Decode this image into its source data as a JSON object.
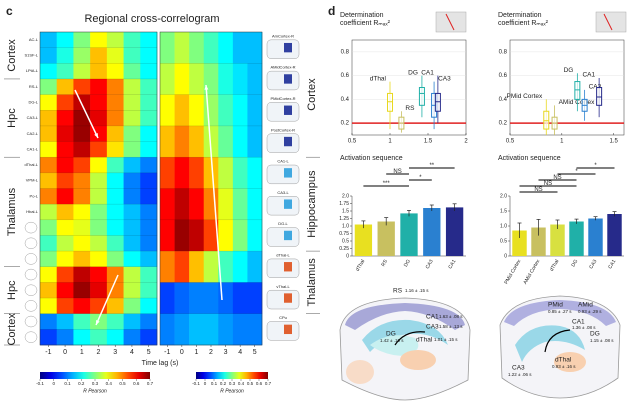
{
  "panel_labels": [
    "c",
    "d"
  ],
  "chart_data": [
    {
      "type": "heatmap",
      "title": "Regional cross-correlogram",
      "xlabel": "Time lag (s)",
      "x": [
        -1,
        0,
        1,
        2,
        3,
        4,
        5
      ],
      "xlim": [
        -1.5,
        5.5
      ],
      "xticks": [
        -1,
        0,
        1,
        2,
        3,
        4,
        5
      ],
      "rows": [
        "AC-L",
        "S1SF-L",
        "LPtA-L",
        "RS-L",
        "DG-L",
        "CA3-L",
        "CA2-L",
        "CA1-L",
        "dThal-L",
        "VPM-L",
        "Po-L",
        "Hbal-L",
        null,
        null,
        null,
        null,
        null,
        null,
        null,
        null
      ],
      "row_label_side": "left",
      "groups": [
        {
          "label": "Cortex",
          "from": 0,
          "to": 2
        },
        {
          "label": "Hpc",
          "from": 3,
          "to": 7
        },
        {
          "label": "Thalamus",
          "from": 8,
          "to": 14
        },
        {
          "label": "Hpc",
          "from": 15,
          "to": 17
        },
        {
          "label": "Cortex",
          "from": 18,
          "to": 19
        }
      ],
      "z": [
        [
          0.15,
          0.2,
          0.3,
          0.4,
          0.35,
          0.25,
          0.2
        ],
        [
          0.15,
          0.22,
          0.32,
          0.45,
          0.38,
          0.25,
          0.2
        ],
        [
          0.2,
          0.25,
          0.35,
          0.45,
          0.4,
          0.28,
          0.2
        ],
        [
          0.3,
          0.45,
          0.55,
          0.6,
          0.5,
          0.35,
          0.25
        ],
        [
          0.4,
          0.55,
          0.65,
          0.6,
          0.5,
          0.35,
          0.25
        ],
        [
          0.45,
          0.6,
          0.68,
          0.62,
          0.5,
          0.35,
          0.25
        ],
        [
          0.45,
          0.62,
          0.68,
          0.6,
          0.45,
          0.3,
          0.2
        ],
        [
          0.4,
          0.6,
          0.65,
          0.55,
          0.42,
          0.3,
          0.2
        ],
        [
          0.5,
          0.6,
          0.55,
          0.4,
          0.25,
          0.15,
          0.1
        ],
        [
          0.45,
          0.55,
          0.5,
          0.35,
          0.2,
          0.1,
          0.05
        ],
        [
          0.5,
          0.6,
          0.5,
          0.35,
          0.2,
          0.1,
          0.05
        ],
        [
          0.35,
          0.45,
          0.4,
          0.3,
          0.2,
          0.15,
          0.1
        ],
        [
          0.3,
          0.4,
          0.38,
          0.3,
          0.2,
          0.15,
          0.1
        ],
        [
          0.25,
          0.35,
          0.4,
          0.35,
          0.25,
          0.15,
          0.1
        ],
        [
          0.3,
          0.4,
          0.45,
          0.4,
          0.3,
          0.2,
          0.15
        ],
        [
          0.4,
          0.55,
          0.65,
          0.6,
          0.5,
          0.35,
          0.25
        ],
        [
          0.45,
          0.6,
          0.68,
          0.62,
          0.5,
          0.35,
          0.25
        ],
        [
          0.4,
          0.55,
          0.6,
          0.55,
          0.45,
          0.3,
          0.2
        ],
        [
          0.1,
          0.15,
          0.25,
          0.3,
          0.25,
          0.15,
          0.1
        ],
        [
          0.05,
          0.1,
          0.2,
          0.25,
          0.2,
          0.1,
          0.05
        ]
      ],
      "zlim": [
        -0.1,
        0.7
      ],
      "zticks": [
        -0.1,
        0,
        0.1,
        0.2,
        0.3,
        0.4,
        0.5,
        0.6,
        0.7
      ],
      "colorbar_label": "R Pearson"
    },
    {
      "type": "heatmap",
      "x": [
        -1,
        0,
        1,
        2,
        3,
        4,
        5
      ],
      "xlim": [
        -1.5,
        5.5
      ],
      "xticks": [
        -1,
        0,
        1,
        2,
        3,
        4,
        5
      ],
      "rows": [
        "AmCortex-R",
        "AMidCortex-R",
        "PMidCortex-R",
        "PostCortex-R",
        "CA1-L",
        "CA3-L",
        "DG-L",
        "dThal-L",
        "vThal-L",
        "CPu"
      ],
      "row_label_side": "right",
      "groups": [
        {
          "label": "Cortex",
          "from": 0,
          "to": 3
        },
        {
          "label": "Hippocampus",
          "from": 4,
          "to": 6
        },
        {
          "label": "Thalamus",
          "from": 7,
          "to": 8
        }
      ],
      "z": [
        [
          0.3,
          0.35,
          0.3,
          0.25,
          0.2,
          0.15,
          0.15
        ],
        [
          0.35,
          0.4,
          0.35,
          0.3,
          0.22,
          0.18,
          0.15
        ],
        [
          0.4,
          0.45,
          0.4,
          0.32,
          0.25,
          0.2,
          0.15
        ],
        [
          0.45,
          0.5,
          0.45,
          0.35,
          0.28,
          0.2,
          0.15
        ],
        [
          0.55,
          0.6,
          0.55,
          0.45,
          0.35,
          0.25,
          0.2
        ],
        [
          0.6,
          0.65,
          0.6,
          0.5,
          0.38,
          0.28,
          0.2
        ],
        [
          0.6,
          0.68,
          0.65,
          0.55,
          0.4,
          0.3,
          0.2
        ],
        [
          0.5,
          0.55,
          0.45,
          0.35,
          0.25,
          0.2,
          0.15
        ],
        [
          0.05,
          0.08,
          0.1,
          0.1,
          0.08,
          0.05,
          0.05
        ],
        [
          0.1,
          0.12,
          0.15,
          0.15,
          0.12,
          0.1,
          0.1
        ]
      ],
      "zlim": [
        -0.1,
        0.7
      ],
      "zticks": [
        -0.1,
        0,
        0.1,
        0.2,
        0.3,
        0.4,
        0.5,
        0.6,
        0.7
      ],
      "colorbar_label": "R Pearson"
    },
    {
      "type": "box",
      "title_lines": [
        "Determination",
        "coefficient Rₘₐₓ²"
      ],
      "xlim": [
        0.5,
        2
      ],
      "xticks": [
        0.5,
        1,
        1.5,
        2
      ],
      "ylim": [
        0.1,
        0.9
      ],
      "yticks": [
        0.2,
        0.4,
        0.6,
        0.8
      ],
      "threshold": 0.2,
      "threshold_color": "#e02020",
      "series": [
        {
          "name": "dThal",
          "color": "#e8d820",
          "x": 1.0,
          "q1": 0.3,
          "median": 0.38,
          "q3": 0.45,
          "whisker_low": 0.15,
          "whisker_high": 0.55
        },
        {
          "name": "RS",
          "color": "#c8c060",
          "x": 1.15,
          "q1": 0.15,
          "median": 0.2,
          "q3": 0.25,
          "whisker_low": 0.12,
          "whisker_high": 0.3
        },
        {
          "name": "DG",
          "color": "#20b0a8",
          "x": 1.42,
          "q1": 0.35,
          "median": 0.45,
          "q3": 0.5,
          "whisker_low": 0.25,
          "whisker_high": 0.6
        },
        {
          "name": "CA3",
          "color": "#2a80d0",
          "x": 1.58,
          "q1": 0.25,
          "median": 0.35,
          "q3": 0.45,
          "whisker_low": 0.15,
          "whisker_high": 0.55
        },
        {
          "name": "CA1",
          "color": "#262a8a",
          "x": 1.63,
          "q1": 0.3,
          "median": 0.38,
          "q3": 0.45,
          "whisker_low": 0.2,
          "whisker_high": 0.6
        }
      ]
    },
    {
      "type": "box",
      "title_lines": [
        "Determination",
        "coefficient Rₘₐₓ²"
      ],
      "xlim": [
        0.5,
        1.6
      ],
      "xticks": [
        0.5,
        1,
        1.5
      ],
      "ylim": [
        0.1,
        0.9
      ],
      "yticks": [
        0.2,
        0.4,
        0.6,
        0.8
      ],
      "threshold": 0.2,
      "threshold_color": "#e02020",
      "series": [
        {
          "name": "PMid Cortex",
          "color": "#e8d820",
          "x": 0.85,
          "q1": 0.15,
          "median": 0.22,
          "q3": 0.3,
          "whisker_low": 0.1,
          "whisker_high": 0.4
        },
        {
          "name": "AMid Cortex",
          "color": "#c8c060",
          "x": 0.93,
          "q1": 0.15,
          "median": 0.2,
          "q3": 0.25,
          "whisker_low": 0.1,
          "whisker_high": 0.35
        },
        {
          "name": "DG",
          "color": "#20b0a8",
          "x": 1.15,
          "q1": 0.4,
          "median": 0.48,
          "q3": 0.55,
          "whisker_low": 0.3,
          "whisker_high": 0.62
        },
        {
          "name": "CA3",
          "color": "#2a80d0",
          "x": 1.22,
          "q1": 0.3,
          "median": 0.35,
          "q3": 0.4,
          "whisker_low": 0.22,
          "whisker_high": 0.48
        },
        {
          "name": "CA1",
          "color": "#262a8a",
          "x": 1.36,
          "q1": 0.35,
          "median": 0.42,
          "q3": 0.5,
          "whisker_low": 0.25,
          "whisker_high": 0.58
        }
      ]
    },
    {
      "type": "bar",
      "title": "Activation sequence",
      "categories": [
        "dThal",
        "RS",
        "DG",
        "CA3",
        "CA1"
      ],
      "values": [
        1.05,
        1.15,
        1.42,
        1.6,
        1.62
      ],
      "errors": [
        0.12,
        0.13,
        0.1,
        0.1,
        0.12
      ],
      "colors": [
        "#e8e020",
        "#c8c060",
        "#20b0a8",
        "#2a80d0",
        "#262a8a"
      ],
      "ylim": [
        0,
        2
      ],
      "yticks": [
        0,
        0.25,
        0.5,
        0.75,
        {
          "value": 1,
          "label": "1.0"
        },
        1.25,
        1.5,
        1.75,
        {
          "value": 2,
          "label": "2.0"
        }
      ],
      "annotations": [
        {
          "label": "**",
          "between": [
            2,
            4
          ]
        },
        {
          "label": "NS",
          "between": [
            1,
            2
          ]
        },
        {
          "label": "*",
          "between": [
            2,
            3
          ]
        },
        {
          "label": "***",
          "between": [
            0,
            2
          ]
        }
      ]
    },
    {
      "type": "bar",
      "title": "Activation sequence",
      "categories": [
        "PMid Cortex",
        "AMid Cortex",
        "dThal",
        "DG",
        "CA3",
        "CA1"
      ],
      "values": [
        0.85,
        0.95,
        1.05,
        1.15,
        1.25,
        1.4
      ],
      "errors": [
        0.25,
        0.27,
        0.15,
        0.08,
        0.06,
        0.08
      ],
      "colors": [
        "#e8e020",
        "#c8c060",
        "#d8e040",
        "#20b0a8",
        "#2a80d0",
        "#262a8a"
      ],
      "ylim": [
        0,
        2
      ],
      "yticks": [
        0,
        0.5,
        {
          "value": 1,
          "label": "1.0"
        },
        1.5,
        {
          "value": 2,
          "label": "2.0"
        }
      ],
      "annotations": [
        {
          "label": "*",
          "between": [
            3,
            5
          ]
        },
        {
          "label": "*",
          "between": [
            2,
            4
          ]
        },
        {
          "label": "NS",
          "between": [
            1,
            3
          ]
        },
        {
          "label": "NS",
          "between": [
            0,
            3
          ]
        },
        {
          "label": "NS",
          "between": [
            0,
            2
          ]
        }
      ]
    }
  ],
  "brain_maps": [
    {
      "labels": [
        {
          "region": "RS",
          "time": "1.16 ± .15 s"
        },
        {
          "region": "CA1",
          "time": "1.63 ± .08 s"
        },
        {
          "region": "CA3",
          "time": "1.58 ± .13 s"
        },
        {
          "region": "DG",
          "time": "1.42 ± .10 s"
        },
        {
          "region": "dThal",
          "time": "1.01 ± .15 s"
        }
      ]
    },
    {
      "labels": [
        {
          "region": "PMid",
          "time": "0.85 ± .27 s"
        },
        {
          "region": "AMid",
          "time": "0.93 ± .29 s"
        },
        {
          "region": "CA1",
          "time": "1.36 ± .08 s"
        },
        {
          "region": "DG",
          "time": "1.15 ± .08 s"
        },
        {
          "region": "CA3",
          "time": "1.22 ± .06 s"
        },
        {
          "region": "dThal",
          "time": "0.93 ± .16 s"
        }
      ]
    }
  ]
}
